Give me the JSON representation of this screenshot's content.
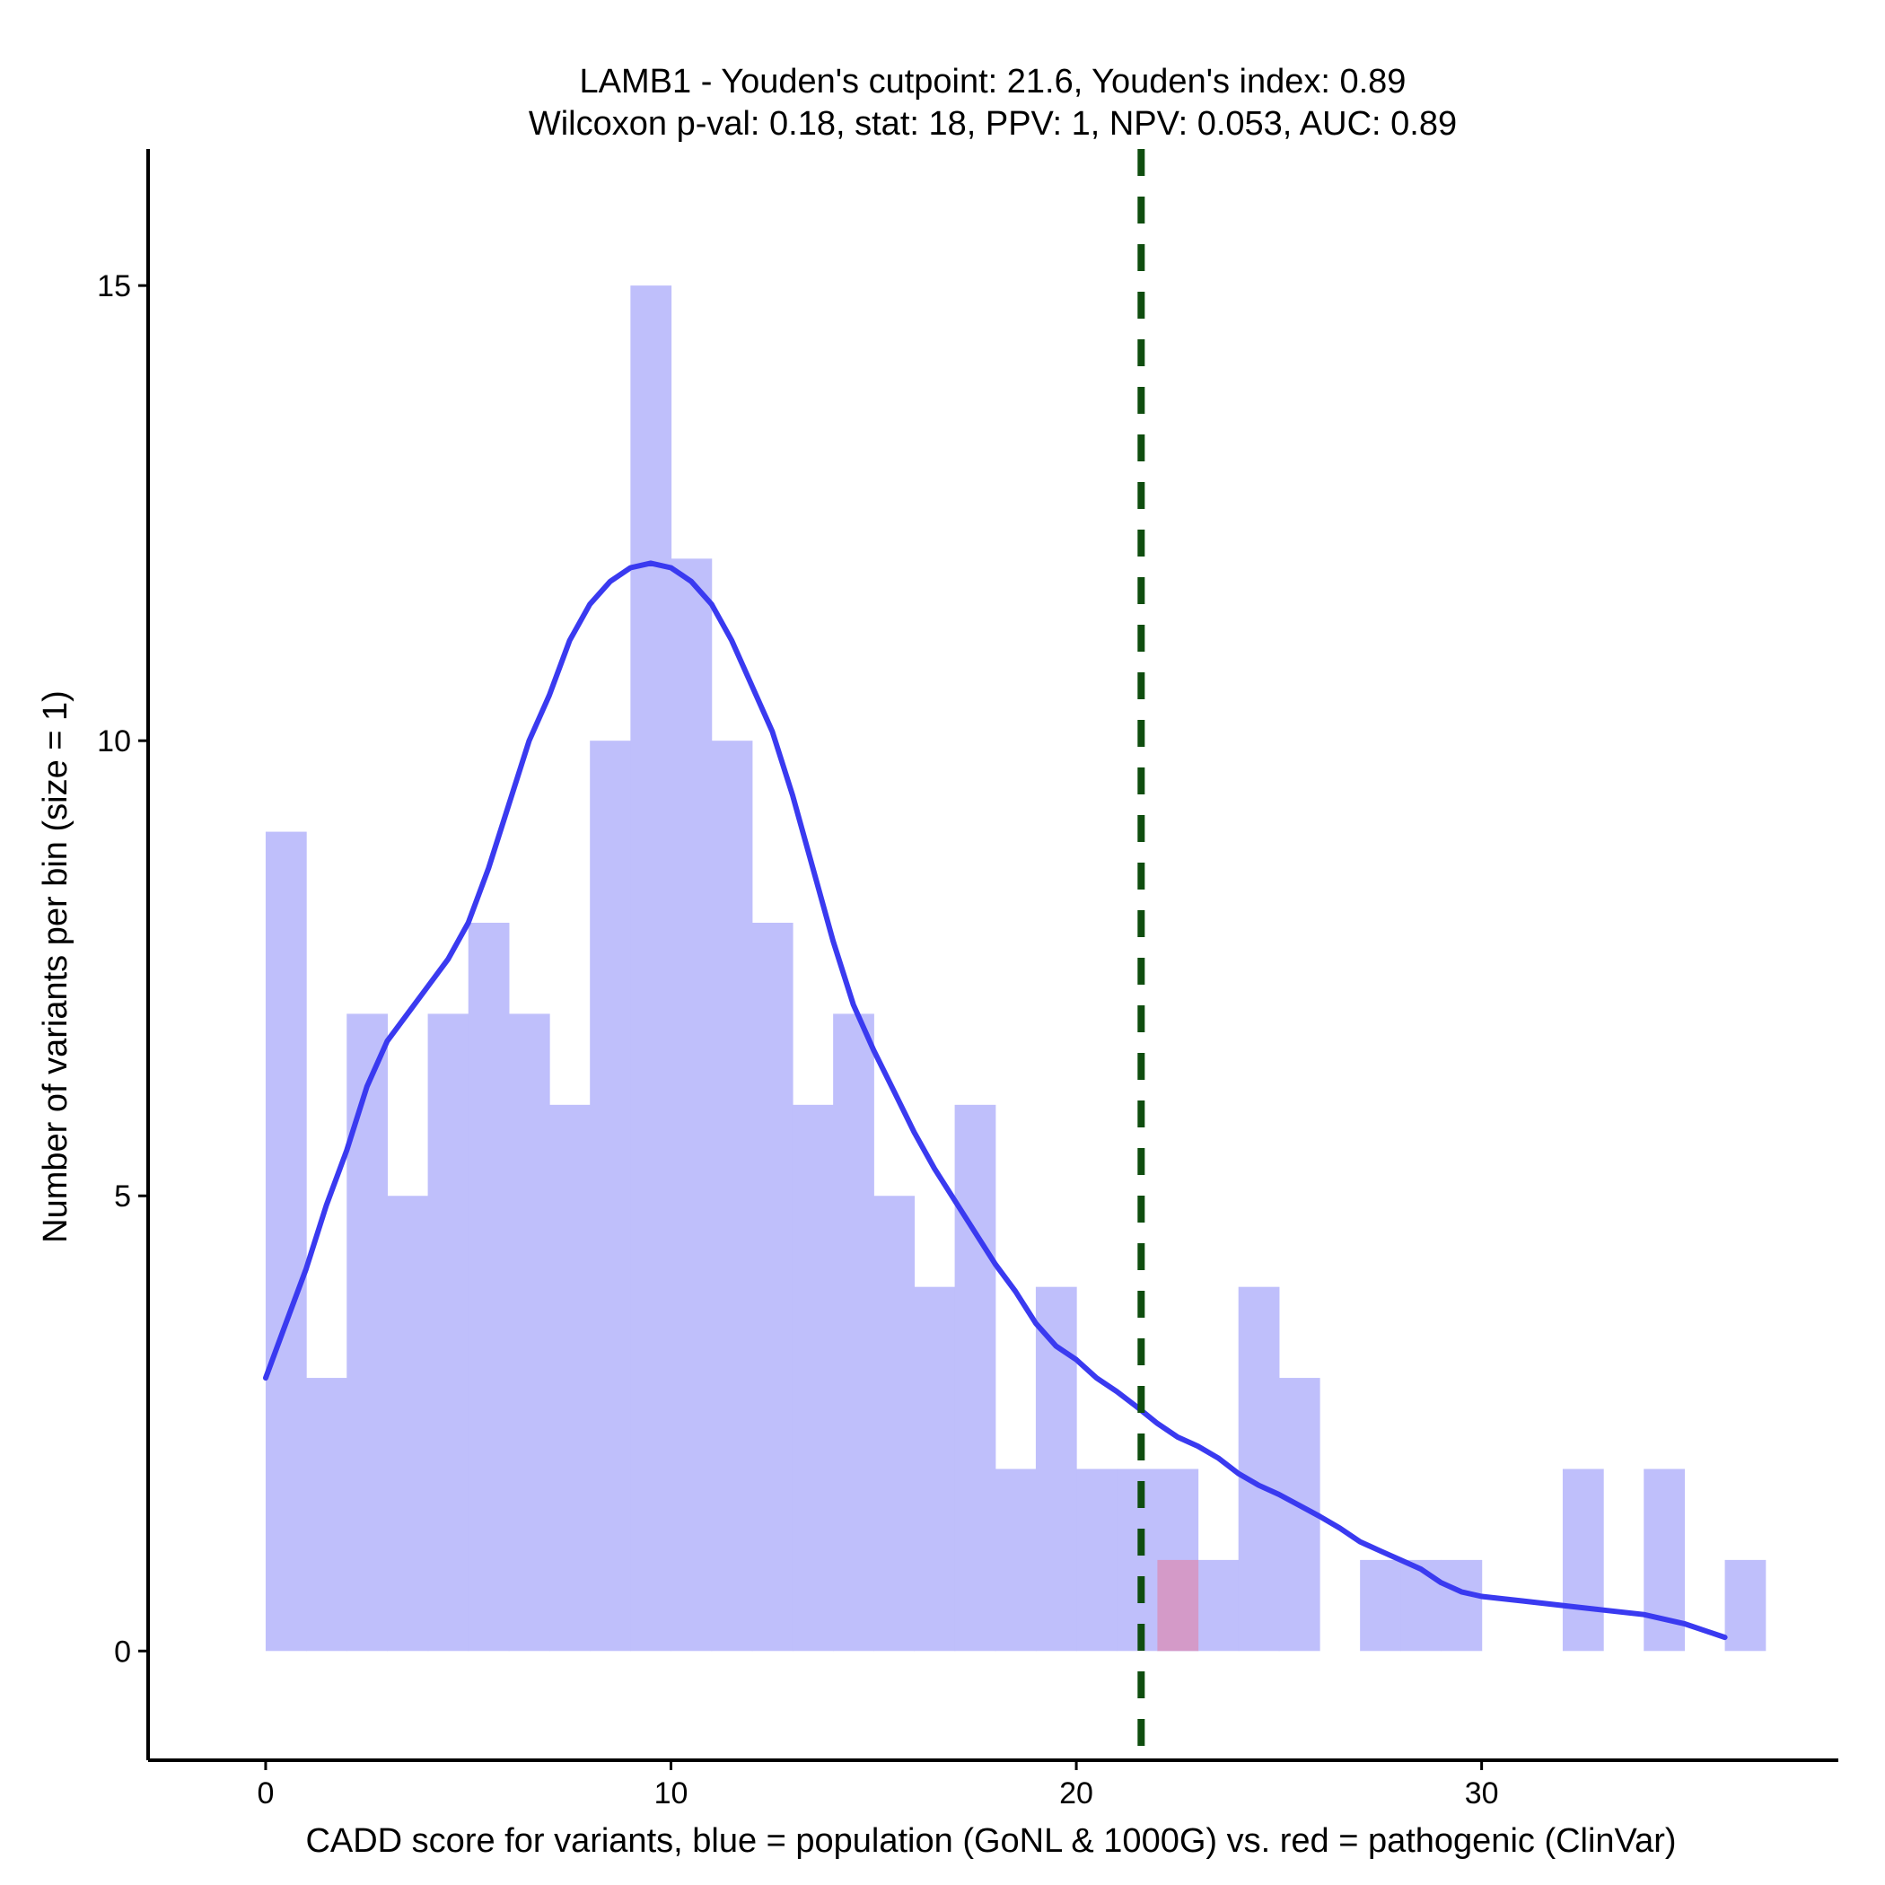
{
  "chart_data": {
    "type": "bar",
    "title_line1": "LAMB1 - Youden's cutpoint: 21.6, Youden's index: 0.89",
    "title_line2": "Wilcoxon p-val: 0.18, stat: 18, PPV: 1, NPV: 0.053, AUC: 0.89",
    "xlabel": "CADD score for variants, blue = population (GoNL & 1000G) vs. red = pathogenic (ClinVar)",
    "ylabel": "Number of variants per bin (size = 1)",
    "xlim": [
      -2.9,
      38.8
    ],
    "ylim": [
      -1.2,
      16.5
    ],
    "x_ticks": [
      0,
      10,
      20,
      30
    ],
    "y_ticks": [
      0,
      5,
      10,
      15
    ],
    "bin_size": 1,
    "cutpoint": 21.6,
    "colors": {
      "population_fill": "#bfbffb",
      "pathogenic_fill": "#d49ac8",
      "density_line": "#3a3af0",
      "cutpoint_line": "#0f4d0f",
      "axis": "#000000"
    },
    "series": [
      {
        "name": "population",
        "bins": [
          {
            "start": 0,
            "count": 9
          },
          {
            "start": 1,
            "count": 3
          },
          {
            "start": 2,
            "count": 7
          },
          {
            "start": 3,
            "count": 5
          },
          {
            "start": 4,
            "count": 7
          },
          {
            "start": 5,
            "count": 8
          },
          {
            "start": 6,
            "count": 7
          },
          {
            "start": 7,
            "count": 6
          },
          {
            "start": 8,
            "count": 10
          },
          {
            "start": 9,
            "count": 15
          },
          {
            "start": 10,
            "count": 12
          },
          {
            "start": 11,
            "count": 10
          },
          {
            "start": 12,
            "count": 8
          },
          {
            "start": 13,
            "count": 6
          },
          {
            "start": 14,
            "count": 7
          },
          {
            "start": 15,
            "count": 5
          },
          {
            "start": 16,
            "count": 4
          },
          {
            "start": 17,
            "count": 6
          },
          {
            "start": 18,
            "count": 2
          },
          {
            "start": 19,
            "count": 4
          },
          {
            "start": 20,
            "count": 2
          },
          {
            "start": 21,
            "count": 2
          },
          {
            "start": 22,
            "count": 2
          },
          {
            "start": 23,
            "count": 1
          },
          {
            "start": 24,
            "count": 4
          },
          {
            "start": 25,
            "count": 3
          },
          {
            "start": 27,
            "count": 1
          },
          {
            "start": 28,
            "count": 1
          },
          {
            "start": 29,
            "count": 1
          },
          {
            "start": 32,
            "count": 2
          },
          {
            "start": 34,
            "count": 2
          },
          {
            "start": 36,
            "count": 1
          }
        ]
      },
      {
        "name": "pathogenic",
        "bins": [
          {
            "start": 22,
            "count": 1
          }
        ]
      }
    ],
    "density_curve": {
      "x": [
        0,
        0.5,
        1,
        1.5,
        2,
        2.5,
        3,
        3.5,
        4,
        4.5,
        5,
        5.5,
        6,
        6.5,
        7,
        7.5,
        8,
        8.5,
        9,
        9.5,
        10,
        10.5,
        11,
        11.5,
        12,
        12.5,
        13,
        13.5,
        14,
        14.5,
        15,
        15.5,
        16,
        16.5,
        17,
        17.5,
        18,
        18.5,
        19,
        19.5,
        20,
        20.5,
        21,
        21.5,
        22,
        22.5,
        23,
        23.5,
        24,
        24.5,
        25,
        25.5,
        26,
        26.5,
        27,
        27.5,
        28,
        28.5,
        29,
        29.5,
        30,
        31,
        32,
        33,
        34,
        35,
        36
      ],
      "y": [
        3.0,
        3.6,
        4.2,
        4.9,
        5.5,
        6.2,
        6.7,
        7.0,
        7.3,
        7.6,
        8.0,
        8.6,
        9.3,
        10.0,
        10.5,
        11.1,
        11.5,
        11.75,
        11.9,
        11.95,
        11.9,
        11.75,
        11.5,
        11.1,
        10.6,
        10.1,
        9.4,
        8.6,
        7.8,
        7.1,
        6.6,
        6.15,
        5.7,
        5.3,
        4.95,
        4.6,
        4.25,
        3.95,
        3.6,
        3.35,
        3.2,
        3.0,
        2.85,
        2.68,
        2.5,
        2.35,
        2.25,
        2.12,
        1.95,
        1.82,
        1.72,
        1.6,
        1.48,
        1.35,
        1.2,
        1.1,
        1.0,
        0.9,
        0.75,
        0.65,
        0.6,
        0.55,
        0.5,
        0.45,
        0.4,
        0.3,
        0.15
      ]
    }
  }
}
